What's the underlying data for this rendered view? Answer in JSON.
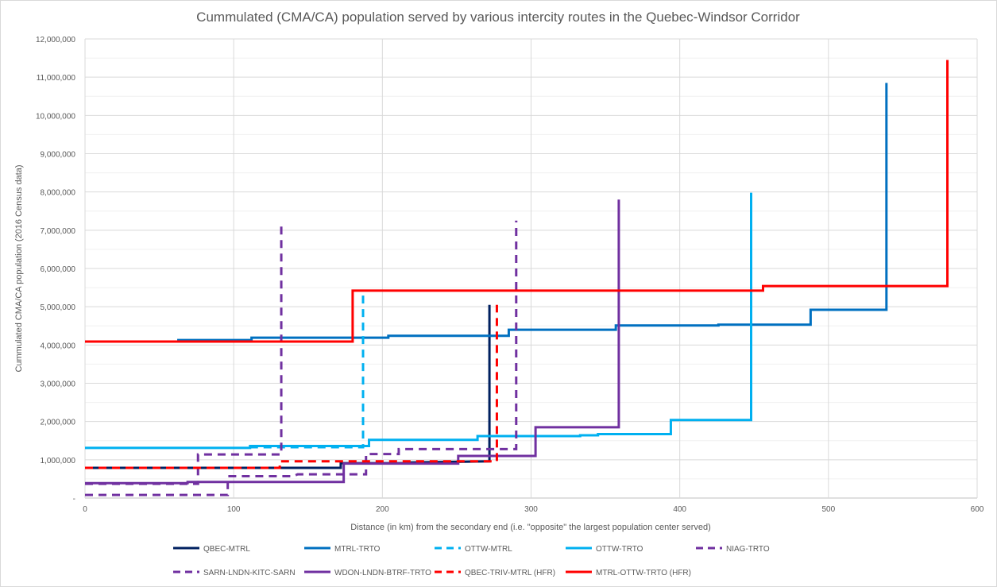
{
  "chart_data": {
    "type": "line",
    "step": true,
    "title": "Cummulated (CMA/CA) population served by various intercity routes in the Quebec-Windsor Corridor",
    "xlabel": "Distance (in km) from the secondary end (i.e. \"opposite\" the largest population center served)",
    "ylabel": "Cummulated CMA/CA population (2016 Census data)",
    "xlim": [
      0,
      600
    ],
    "ylim": [
      0,
      12000000
    ],
    "xticks": [
      "0",
      "100",
      "200",
      "300",
      "400",
      "500",
      "600"
    ],
    "yticks": [
      "-",
      "1,000,000",
      "2,000,000",
      "3,000,000",
      "4,000,000",
      "5,000,000",
      "6,000,000",
      "7,000,000",
      "8,000,000",
      "9,000,000",
      "10,000,000",
      "11,000,000",
      "12,000,000"
    ],
    "grid": true,
    "legend_position": "bottom",
    "series": [
      {
        "name": "QBEC-MTRL",
        "color": "#002060",
        "dash": false,
        "points": [
          [
            0,
            790000
          ],
          [
            172,
            790000
          ],
          [
            172,
            910000
          ],
          [
            219,
            910000
          ],
          [
            219,
            930000
          ],
          [
            272,
            960000
          ],
          [
            272,
            5050000
          ]
        ]
      },
      {
        "name": "MTRL-TRTO",
        "color": "#0070C0",
        "dash": false,
        "points": [
          [
            62,
            4130000
          ],
          [
            112,
            4130000
          ],
          [
            112,
            4190000
          ],
          [
            204,
            4190000
          ],
          [
            204,
            4240000
          ],
          [
            285,
            4240000
          ],
          [
            285,
            4400000
          ],
          [
            357,
            4400000
          ],
          [
            357,
            4510000
          ],
          [
            426,
            4510000
          ],
          [
            426,
            4530000
          ],
          [
            488,
            4530000
          ],
          [
            488,
            4920000
          ],
          [
            539,
            4920000
          ],
          [
            539,
            10850000
          ]
        ]
      },
      {
        "name": "OTTW-MTRL",
        "color": "#00B0F0",
        "dash": true,
        "points": [
          [
            111,
            1330000
          ],
          [
            187,
            1330000
          ],
          [
            187,
            5450000
          ]
        ]
      },
      {
        "name": "OTTW-TRTO",
        "color": "#00B0F0",
        "dash": false,
        "points": [
          [
            0,
            1310000
          ],
          [
            111,
            1310000
          ],
          [
            111,
            1360000
          ],
          [
            191,
            1360000
          ],
          [
            191,
            1520000
          ],
          [
            264,
            1520000
          ],
          [
            264,
            1620000
          ],
          [
            333,
            1620000
          ],
          [
            333,
            1640000
          ],
          [
            345,
            1640000
          ],
          [
            345,
            1670000
          ],
          [
            394,
            1670000
          ],
          [
            394,
            2040000
          ],
          [
            448,
            2040000
          ],
          [
            448,
            7980000
          ]
        ]
      },
      {
        "name": "NIAG-TRTO",
        "color": "#7030A0",
        "dash": true,
        "points": [
          [
            0,
            80000
          ],
          [
            96,
            80000
          ],
          [
            96,
            570000
          ],
          [
            140,
            570000
          ],
          [
            143,
            620000
          ],
          [
            189,
            620000
          ],
          [
            189,
            1150000
          ],
          [
            211,
            1150000
          ],
          [
            211,
            1280000
          ],
          [
            290,
            1280000
          ],
          [
            290,
            7250000
          ]
        ]
      },
      {
        "name": "SARN-LNDN-KITC-SARN",
        "color": "#7030A0",
        "dash": true,
        "points": [
          [
            0,
            370000
          ],
          [
            76,
            370000
          ],
          [
            76,
            1140000
          ],
          [
            132,
            1140000
          ],
          [
            132,
            7100000
          ]
        ]
      },
      {
        "name": "WDON-LNDN-BTRF-TRTO",
        "color": "#7030A0",
        "dash": false,
        "points": [
          [
            0,
            390000
          ],
          [
            69,
            390000
          ],
          [
            69,
            420000
          ],
          [
            174,
            420000
          ],
          [
            174,
            900000
          ],
          [
            251,
            900000
          ],
          [
            251,
            1100000
          ],
          [
            303,
            1100000
          ],
          [
            303,
            1850000
          ],
          [
            359,
            1850000
          ],
          [
            359,
            7800000
          ]
        ]
      },
      {
        "name": "QBEC-TRIV-MTRL (HFR)",
        "color": "#FF0000",
        "dash": true,
        "points": [
          [
            0,
            790000
          ],
          [
            131,
            790000
          ],
          [
            131,
            960000
          ],
          [
            277,
            960000
          ],
          [
            277,
            5050000
          ]
        ]
      },
      {
        "name": "MTRL-OTTW-TRTO (HFR)",
        "color": "#FF0000",
        "dash": false,
        "points": [
          [
            0,
            4090000
          ],
          [
            180,
            4090000
          ],
          [
            180,
            5420000
          ],
          [
            456,
            5420000
          ],
          [
            456,
            5540000
          ],
          [
            580,
            5540000
          ],
          [
            580,
            11450000
          ]
        ]
      }
    ]
  }
}
